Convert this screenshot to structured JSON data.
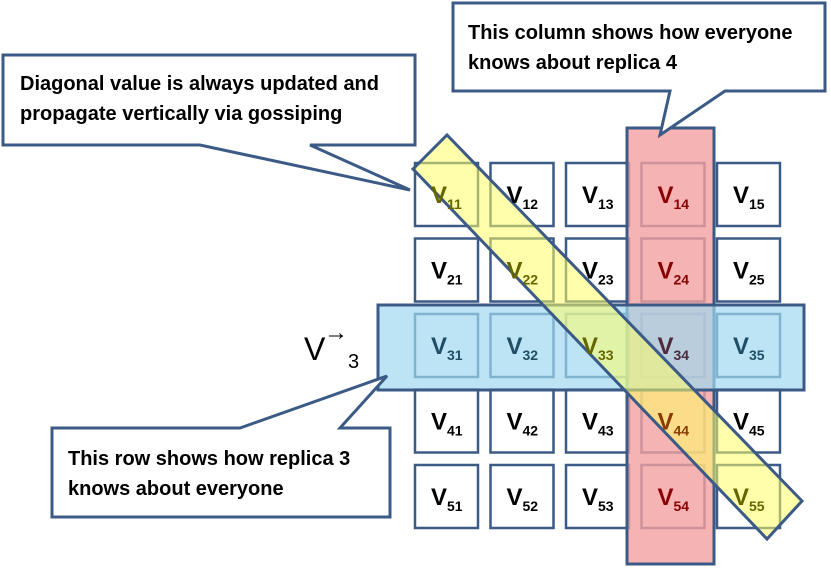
{
  "callouts": {
    "diagonal": {
      "lines": [
        "Diagonal value is always updated and",
        "propagate vertically via gossiping"
      ]
    },
    "column": {
      "lines": [
        "This column shows how everyone",
        "knows about replica 4"
      ]
    },
    "row": {
      "lines": [
        "This row shows how replica 3",
        "knows about everyone"
      ]
    }
  },
  "vector_label": {
    "symbol": "V",
    "arrow": "→",
    "subscript": "3"
  },
  "matrix": {
    "rows": [
      [
        {
          "base": "V",
          "sub": "11"
        },
        {
          "base": "V",
          "sub": "12"
        },
        {
          "base": "V",
          "sub": "13"
        },
        {
          "base": "V",
          "sub": "14"
        },
        {
          "base": "V",
          "sub": "15"
        }
      ],
      [
        {
          "base": "V",
          "sub": "21"
        },
        {
          "base": "V",
          "sub": "22"
        },
        {
          "base": "V",
          "sub": "23"
        },
        {
          "base": "V",
          "sub": "24"
        },
        {
          "base": "V",
          "sub": "25"
        }
      ],
      [
        {
          "base": "V",
          "sub": "31"
        },
        {
          "base": "V",
          "sub": "32"
        },
        {
          "base": "V",
          "sub": "33"
        },
        {
          "base": "V",
          "sub": "34"
        },
        {
          "base": "V",
          "sub": "35"
        }
      ],
      [
        {
          "base": "V",
          "sub": "41"
        },
        {
          "base": "V",
          "sub": "42"
        },
        {
          "base": "V",
          "sub": "43"
        },
        {
          "base": "V",
          "sub": "44"
        },
        {
          "base": "V",
          "sub": "45"
        }
      ],
      [
        {
          "base": "V",
          "sub": "51"
        },
        {
          "base": "V",
          "sub": "52"
        },
        {
          "base": "V",
          "sub": "53"
        },
        {
          "base": "V",
          "sub": "54"
        },
        {
          "base": "V",
          "sub": "55"
        }
      ]
    ],
    "highlighted_row": 3,
    "highlighted_column": 4
  },
  "colors": {
    "border": "#3b5a86",
    "diagonal_fill": "#ffff80",
    "row_fill": "#9fd8f0",
    "column_fill": "#f4a0a0",
    "text_default": "#000000",
    "text_diagonal": "#666600",
    "text_row": "#1f4e66",
    "text_column": "#8b0000",
    "text_intersection": "#4d2b3a"
  }
}
